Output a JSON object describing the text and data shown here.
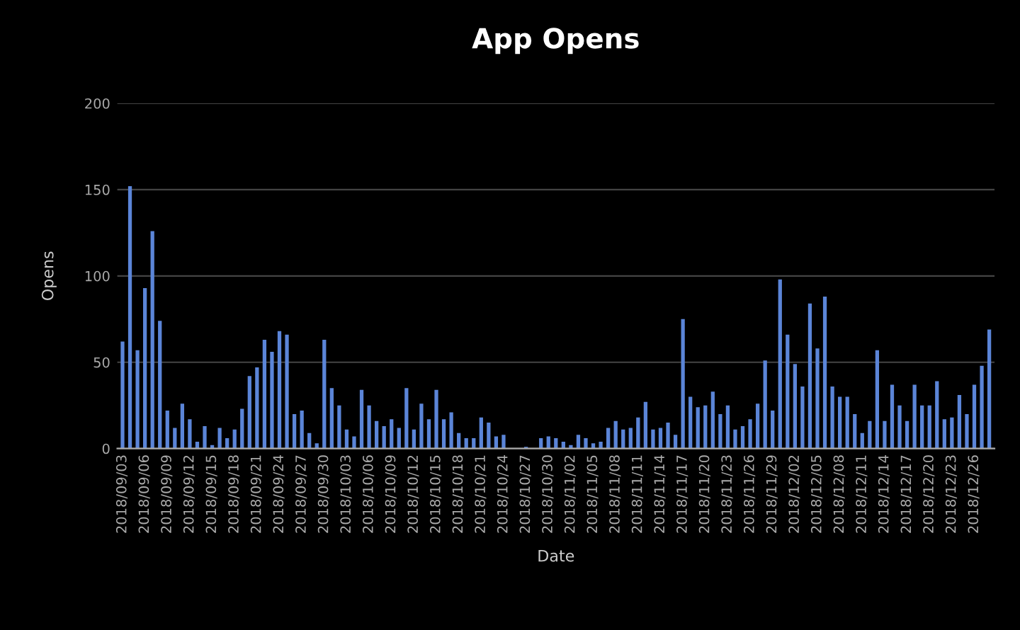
{
  "chart_data": {
    "type": "bar",
    "title": "App Opens",
    "xlabel": "Date",
    "ylabel": "Opens",
    "categories": [
      "2018/09/03",
      null,
      null,
      "2018/09/06",
      null,
      null,
      "2018/09/09",
      null,
      null,
      "2018/09/12",
      null,
      null,
      "2018/09/15",
      null,
      null,
      "2018/09/18",
      null,
      null,
      "2018/09/21",
      null,
      null,
      "2018/09/24",
      null,
      null,
      "2018/09/27",
      null,
      null,
      "2018/09/30",
      null,
      null,
      "2018/10/03",
      null,
      null,
      "2018/10/06",
      null,
      null,
      "2018/10/09",
      null,
      null,
      "2018/10/12",
      null,
      null,
      "2018/10/15",
      null,
      null,
      "2018/10/18",
      null,
      null,
      "2018/10/21",
      null,
      null,
      "2018/10/24",
      null,
      null,
      "2018/10/27",
      null,
      null,
      "2018/10/30",
      null,
      null,
      "2018/11/02",
      null,
      null,
      "2018/11/05",
      null,
      null,
      "2018/11/08",
      null,
      null,
      "2018/11/11",
      null,
      null,
      "2018/11/14",
      null,
      null,
      "2018/11/17",
      null,
      null,
      "2018/11/20",
      null,
      null,
      "2018/11/23",
      null,
      null,
      "2018/11/26",
      null,
      null,
      "2018/11/29",
      null,
      null,
      "2018/12/02",
      null,
      null,
      "2018/12/05",
      null,
      null,
      "2018/12/08",
      null,
      null,
      "2018/12/11",
      null,
      null,
      "2018/12/14",
      null,
      null,
      "2018/12/17",
      null,
      null,
      "2018/12/20",
      null,
      null,
      "2018/12/23",
      null,
      null,
      "2018/12/26",
      null,
      null
    ],
    "values": [
      62,
      152,
      57,
      93,
      126,
      74,
      22,
      12,
      26,
      17,
      4,
      13,
      2,
      12,
      6,
      11,
      23,
      42,
      47,
      63,
      56,
      68,
      66,
      20,
      22,
      9,
      3,
      63,
      35,
      25,
      11,
      7,
      34,
      25,
      16,
      13,
      17,
      12,
      35,
      11,
      26,
      17,
      34,
      17,
      21,
      9,
      6,
      6,
      18,
      15,
      7,
      8,
      0,
      0,
      1,
      0,
      6,
      7,
      6,
      4,
      2,
      8,
      6,
      3,
      4,
      12,
      16,
      11,
      12,
      18,
      27,
      11,
      12,
      15,
      8,
      75,
      30,
      24,
      25,
      33,
      20,
      25,
      11,
      13,
      17,
      26,
      51,
      22,
      98,
      66,
      49,
      36,
      84,
      58,
      88,
      36,
      30,
      30,
      20,
      9,
      16,
      57,
      16,
      37,
      25,
      16,
      37,
      25,
      25,
      39,
      17,
      18,
      31,
      20,
      37,
      48,
      69
    ],
    "color": "#5b85d8",
    "ylim": [
      0,
      200
    ],
    "yticks": [
      0,
      50,
      100,
      150,
      200
    ],
    "grid": "y"
  }
}
